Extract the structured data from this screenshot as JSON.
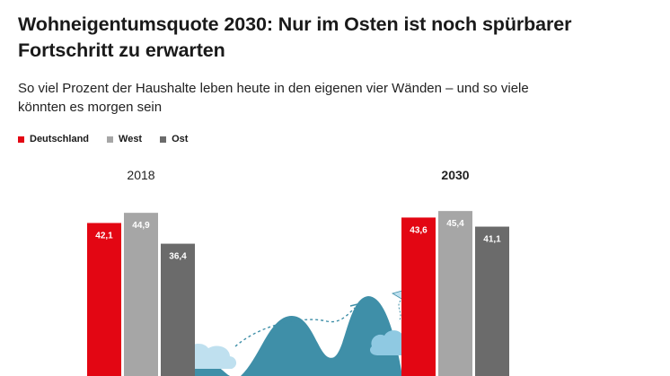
{
  "title": "Wohneigentumsquote 2030: Nur im Osten ist noch spürbarer Fortschritt zu erwarten",
  "subtitle": "So viel Prozent der Haushalte leben heute in den eigenen vier Wänden – und so viele könnten es morgen sein",
  "legend": [
    {
      "label": "Deutschland",
      "color": "#e30613"
    },
    {
      "label": "West",
      "color": "#a6a6a6"
    },
    {
      "label": "Ost",
      "color": "#6b6b6b"
    }
  ],
  "chart_data": {
    "type": "bar",
    "categories": [
      "2018",
      "2030"
    ],
    "series": [
      {
        "name": "Deutschland",
        "values": [
          42.1,
          43.6
        ],
        "labels": [
          "42,1",
          "43,6"
        ],
        "color": "#e30613"
      },
      {
        "name": "West",
        "values": [
          44.9,
          45.4
        ],
        "labels": [
          "44,9",
          "45,4"
        ],
        "color": "#a6a6a6"
      },
      {
        "name": "Ost",
        "values": [
          36.4,
          41.1
        ],
        "labels": [
          "36,4",
          "41,1"
        ],
        "color": "#6b6b6b"
      }
    ]
  }
}
